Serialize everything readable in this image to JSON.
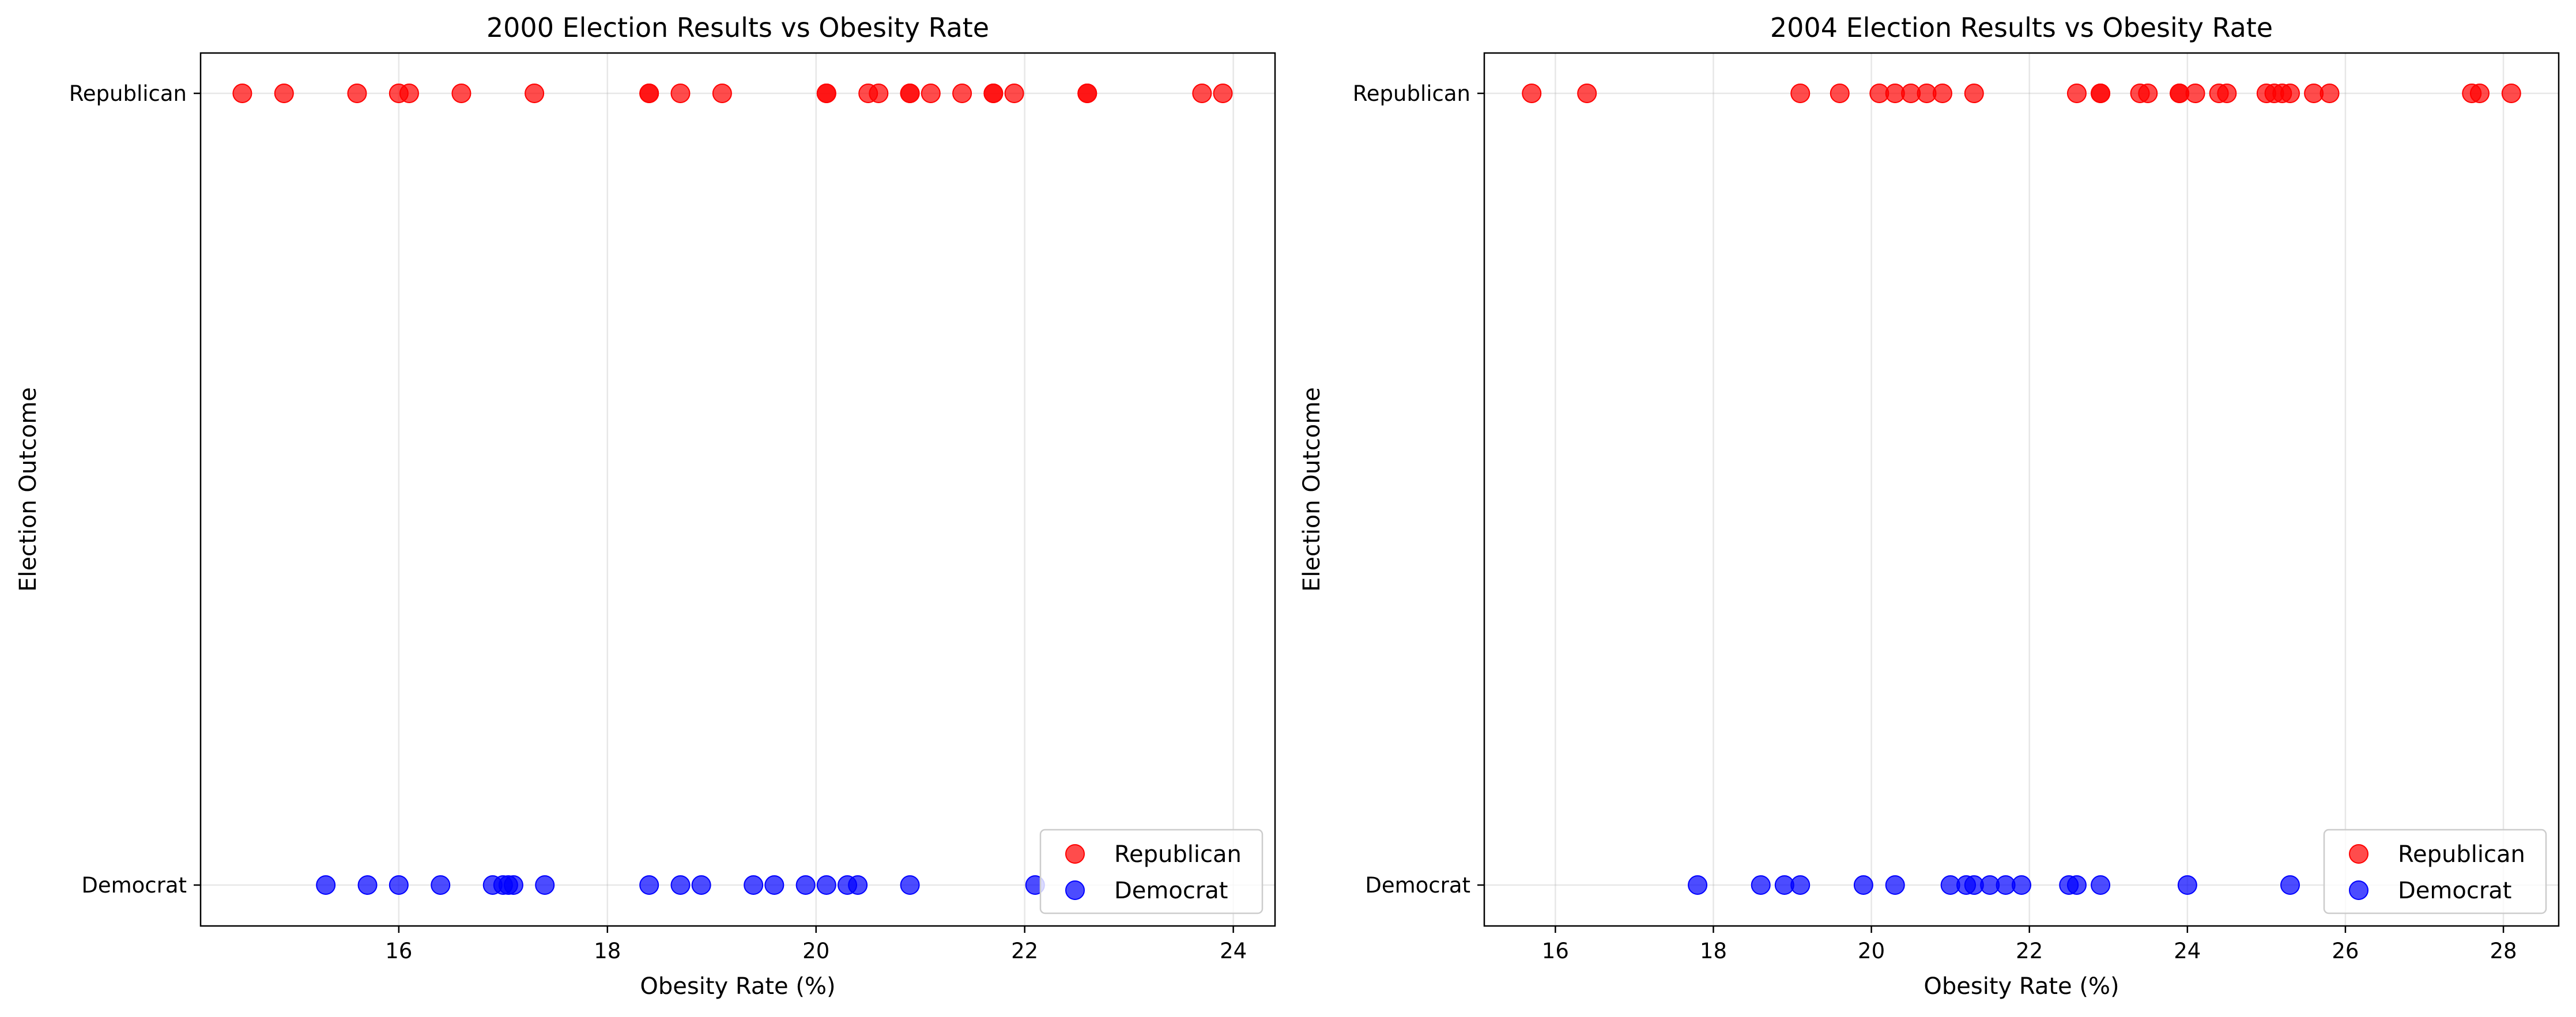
{
  "chart_data": [
    {
      "type": "scatter",
      "title": "2000 Election Results vs Obesity Rate",
      "xlabel": "Obesity Rate (%)",
      "ylabel": "Election Outcome",
      "xlim": [
        14.1,
        24.4
      ],
      "xticks": [
        16,
        18,
        20,
        22,
        24
      ],
      "y_categories": [
        "Democrat",
        "Republican"
      ],
      "grid": true,
      "legend_position": "lower right",
      "series": [
        {
          "name": "Republican",
          "color": "#ff0000",
          "y": "Republican",
          "x": [
            14.5,
            14.9,
            15.6,
            16.0,
            16.1,
            16.6,
            17.3,
            18.4,
            18.4,
            18.7,
            19.1,
            20.1,
            20.1,
            20.5,
            20.6,
            20.9,
            20.9,
            21.1,
            21.4,
            21.7,
            21.7,
            21.9,
            22.6,
            22.6,
            23.7,
            23.9
          ]
        },
        {
          "name": "Democrat",
          "color": "#0000ff",
          "y": "Democrat",
          "x": [
            15.3,
            15.7,
            16.0,
            16.4,
            16.9,
            17.0,
            17.05,
            17.1,
            17.4,
            18.4,
            18.7,
            18.9,
            19.4,
            19.6,
            19.9,
            20.1,
            20.3,
            20.4,
            20.9,
            22.1
          ]
        }
      ]
    },
    {
      "type": "scatter",
      "title": "2004 Election Results vs Obesity Rate",
      "xlabel": "Obesity Rate (%)",
      "ylabel": "Election Outcome",
      "xlim": [
        15.1,
        28.7
      ],
      "xticks": [
        16,
        18,
        20,
        22,
        24,
        26,
        28
      ],
      "y_categories": [
        "Democrat",
        "Republican"
      ],
      "grid": true,
      "legend_position": "lower right",
      "series": [
        {
          "name": "Republican",
          "color": "#ff0000",
          "y": "Republican",
          "x": [
            15.7,
            16.4,
            19.1,
            19.6,
            20.1,
            20.3,
            20.5,
            20.7,
            20.9,
            21.3,
            22.6,
            22.9,
            22.9,
            23.4,
            23.5,
            23.9,
            23.9,
            24.1,
            24.4,
            24.5,
            25.0,
            25.1,
            25.2,
            25.3,
            25.6,
            25.8,
            27.6,
            27.7,
            28.1
          ]
        },
        {
          "name": "Democrat",
          "color": "#0000ff",
          "y": "Democrat",
          "x": [
            17.8,
            18.6,
            18.9,
            19.1,
            19.9,
            20.3,
            21.0,
            21.2,
            21.3,
            21.5,
            21.7,
            21.9,
            22.5,
            22.6,
            22.9,
            24.0,
            25.3
          ]
        }
      ]
    }
  ]
}
